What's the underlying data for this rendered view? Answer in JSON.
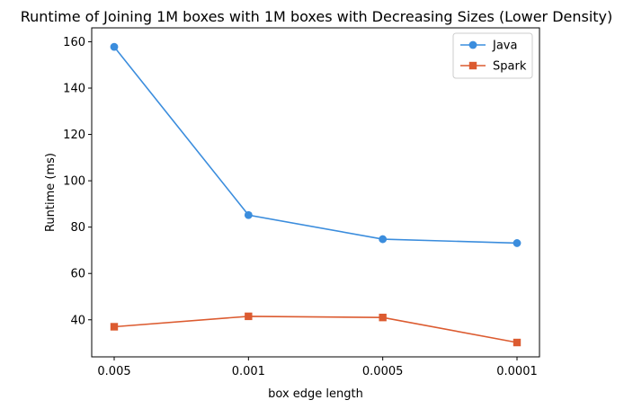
{
  "chart_data": {
    "type": "line",
    "title": "Runtime of Joining 1M boxes with 1M boxes with Decreasing Sizes (Lower Density)",
    "xlabel": "box edge length",
    "ylabel": "Runtime (ms)",
    "categories": [
      "0.005",
      "0.001",
      "0.0005",
      "0.0001"
    ],
    "ylim": [
      24,
      166
    ],
    "yticks": [
      40,
      60,
      80,
      100,
      120,
      140,
      160
    ],
    "grid": false,
    "legend_position": "top-right",
    "series": [
      {
        "name": "Java",
        "marker": "circle",
        "color": "#3b8ddd",
        "values": [
          157.8,
          85.2,
          74.8,
          73.1
        ]
      },
      {
        "name": "Spark",
        "marker": "square",
        "color": "#dc5b30",
        "values": [
          37.0,
          41.5,
          41.0,
          30.2
        ]
      }
    ]
  }
}
